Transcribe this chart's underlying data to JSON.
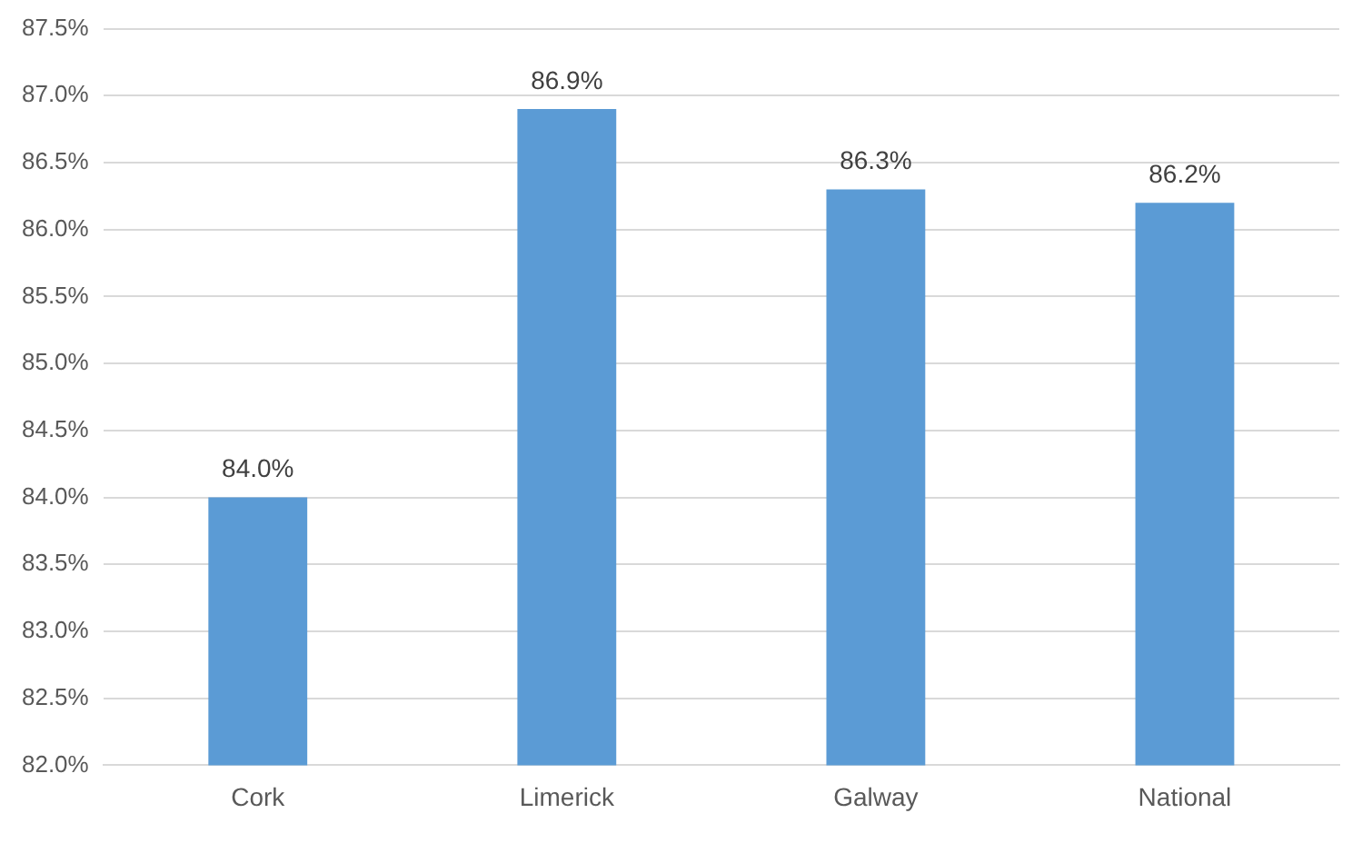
{
  "chart_data": {
    "type": "bar",
    "categories": [
      "Cork",
      "Limerick",
      "Galway",
      "National"
    ],
    "values": [
      84.0,
      86.9,
      86.3,
      86.2
    ],
    "value_labels": [
      "84.0%",
      "86.9%",
      "86.3%",
      "86.2%"
    ],
    "color": "#5b9bd5",
    "ylim": [
      82.0,
      87.5
    ],
    "yticks": [
      {
        "value": 82.0,
        "label": "82.0%"
      },
      {
        "value": 82.5,
        "label": "82.5%"
      },
      {
        "value": 83.0,
        "label": "83.0%"
      },
      {
        "value": 83.5,
        "label": "83.5%"
      },
      {
        "value": 84.0,
        "label": "84.0%"
      },
      {
        "value": 84.5,
        "label": "84.5%"
      },
      {
        "value": 85.0,
        "label": "85.0%"
      },
      {
        "value": 85.5,
        "label": "85.5%"
      },
      {
        "value": 86.0,
        "label": "86.0%"
      },
      {
        "value": 86.5,
        "label": "86.5%"
      },
      {
        "value": 87.0,
        "label": "87.0%"
      },
      {
        "value": 87.5,
        "label": "87.5%"
      }
    ],
    "grid": "y",
    "legend": false
  }
}
